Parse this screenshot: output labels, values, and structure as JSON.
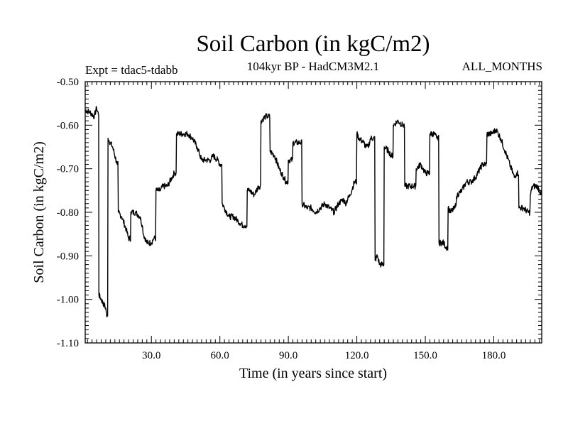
{
  "chart_data": {
    "type": "line",
    "title": "Soil Carbon (in kgC/m2)",
    "subtitle": "104kyr BP - HadCM3M2.1",
    "left_header": "Expt = tdac5-tdabb",
    "right_header": "ALL_MONTHS",
    "xlabel": "Time (in years since start)",
    "ylabel": "Soil Carbon (in kgC/m2)",
    "xlim": [
      1,
      201
    ],
    "ylim": [
      -1.1,
      -0.5
    ],
    "x_ticks": [
      30,
      60,
      90,
      120,
      150,
      180
    ],
    "x_tick_labels": [
      "30.0",
      "60.0",
      "90.0",
      "120.0",
      "150.0",
      "180.0"
    ],
    "y_ticks": [
      -0.5,
      -0.6,
      -0.7,
      -0.8,
      -0.9,
      -1.0,
      -1.1
    ],
    "y_tick_labels": [
      "-0.50",
      "-0.60",
      "-0.70",
      "-0.80",
      "-0.90",
      "-1.00",
      "-1.10"
    ],
    "grid": false,
    "series": [
      {
        "name": "Soil Carbon",
        "color": "#000000",
        "x": [
          1,
          3,
          5,
          6,
          6.8,
          7,
          8,
          10,
          10.5,
          11,
          13,
          15,
          15.5,
          17,
          19,
          20,
          21,
          23,
          25,
          26,
          26.5,
          28,
          30,
          31,
          32,
          33,
          34,
          35,
          37,
          39,
          40,
          41,
          42,
          44,
          46,
          48,
          50,
          52,
          54,
          56,
          57,
          59,
          60,
          61,
          62,
          64,
          66,
          68,
          70,
          71,
          72,
          73,
          75,
          77,
          78,
          80,
          81,
          82,
          84,
          86,
          88,
          89,
          90,
          92,
          94,
          95,
          96,
          98,
          100,
          102,
          104,
          106,
          108,
          110,
          112,
          114,
          115,
          117,
          119,
          120,
          121,
          123,
          124,
          125,
          126,
          128,
          129,
          130,
          132,
          134,
          135,
          136,
          138,
          140,
          141,
          142,
          144,
          146,
          148,
          149,
          150,
          152,
          154,
          155,
          156,
          158,
          159,
          160,
          161,
          163,
          164,
          166,
          168,
          170,
          172,
          174,
          175,
          177,
          179,
          181,
          183,
          185,
          187,
          189,
          190,
          191,
          193,
          195,
          196,
          197,
          199,
          201
        ],
        "y": [
          -0.565,
          -0.57,
          -0.58,
          -0.56,
          -0.575,
          -0.99,
          -1.0,
          -1.02,
          -1.04,
          -0.63,
          -0.65,
          -0.69,
          -0.8,
          -0.81,
          -0.84,
          -0.86,
          -0.8,
          -0.8,
          -0.81,
          -0.83,
          -0.85,
          -0.87,
          -0.87,
          -0.86,
          -0.75,
          -0.75,
          -0.75,
          -0.74,
          -0.74,
          -0.72,
          -0.71,
          -0.62,
          -0.62,
          -0.62,
          -0.62,
          -0.63,
          -0.65,
          -0.68,
          -0.68,
          -0.68,
          -0.67,
          -0.68,
          -0.69,
          -0.78,
          -0.79,
          -0.81,
          -0.81,
          -0.82,
          -0.83,
          -0.83,
          -0.75,
          -0.75,
          -0.76,
          -0.74,
          -0.59,
          -0.58,
          -0.58,
          -0.66,
          -0.67,
          -0.7,
          -0.72,
          -0.73,
          -0.68,
          -0.64,
          -0.64,
          -0.64,
          -0.78,
          -0.79,
          -0.79,
          -0.8,
          -0.79,
          -0.78,
          -0.79,
          -0.8,
          -0.78,
          -0.77,
          -0.78,
          -0.76,
          -0.73,
          -0.62,
          -0.63,
          -0.64,
          -0.65,
          -0.65,
          -0.63,
          -0.91,
          -0.9,
          -0.92,
          -0.65,
          -0.66,
          -0.67,
          -0.6,
          -0.59,
          -0.6,
          -0.74,
          -0.74,
          -0.74,
          -0.7,
          -0.69,
          -0.7,
          -0.71,
          -0.62,
          -0.62,
          -0.63,
          -0.87,
          -0.87,
          -0.88,
          -0.79,
          -0.8,
          -0.79,
          -0.76,
          -0.75,
          -0.73,
          -0.73,
          -0.72,
          -0.7,
          -0.69,
          -0.62,
          -0.62,
          -0.61,
          -0.63,
          -0.66,
          -0.69,
          -0.72,
          -0.71,
          -0.79,
          -0.79,
          -0.8,
          -0.76,
          -0.74,
          -0.74,
          -0.76
        ]
      }
    ]
  }
}
